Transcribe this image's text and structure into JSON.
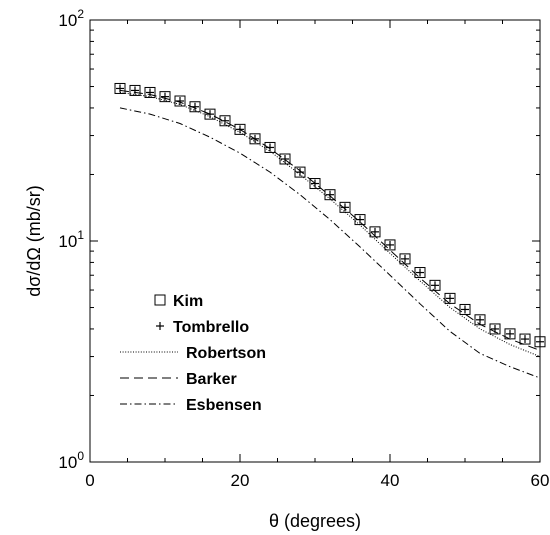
{
  "chart_data": {
    "type": "scatter",
    "xlabel": "θ   (degrees)",
    "ylabel": "dσ/dΩ  (mb/sr)",
    "xlim": [
      0,
      60
    ],
    "ylim": [
      1,
      100
    ],
    "yscale": "log",
    "x_ticks": [
      0,
      20,
      40,
      60
    ],
    "x_tick_labels": [
      "0",
      "20",
      "40",
      "60"
    ],
    "y_ticks": [
      1,
      10,
      100
    ],
    "y_tick_labels": [
      {
        "base": "10",
        "exp": "0"
      },
      {
        "base": "10",
        "exp": "1"
      },
      {
        "base": "10",
        "exp": "2"
      }
    ],
    "grid": false,
    "legend_position": "lower-left",
    "series": [
      {
        "name": "Kim",
        "kind": "markers",
        "marker": "square",
        "x": [
          4,
          6,
          8,
          10,
          12,
          14,
          16,
          18,
          20,
          22,
          24,
          26,
          28,
          30,
          32,
          34,
          36,
          38,
          40,
          42,
          44,
          46,
          48,
          50,
          52,
          54,
          56,
          58,
          60
        ],
        "y": [
          49.0,
          48.0,
          47.0,
          45.0,
          43.0,
          40.5,
          37.5,
          35.0,
          32.0,
          29.0,
          26.5,
          23.5,
          20.5,
          18.2,
          16.2,
          14.2,
          12.5,
          11.0,
          9.6,
          8.3,
          7.2,
          6.3,
          5.5,
          4.9,
          4.4,
          4.0,
          3.8,
          3.6,
          3.5
        ]
      },
      {
        "name": "Tombrello",
        "kind": "markers",
        "marker": "plus",
        "x": [
          4,
          6,
          8,
          10,
          12,
          14,
          16,
          18,
          20,
          22,
          24,
          26,
          28,
          30,
          32,
          34,
          36,
          38,
          40,
          42,
          44,
          46,
          48,
          50,
          52,
          54,
          56,
          58,
          60
        ],
        "y": [
          49.0,
          48.0,
          47.0,
          45.0,
          43.0,
          40.5,
          37.5,
          35.0,
          32.0,
          29.0,
          26.5,
          23.5,
          20.5,
          18.2,
          16.2,
          14.2,
          12.5,
          11.0,
          9.6,
          8.3,
          7.2,
          6.3,
          5.5,
          4.9,
          4.4,
          4.0,
          3.8,
          3.6,
          3.5
        ]
      },
      {
        "name": "Robertson",
        "kind": "line",
        "dash": "1,1.6",
        "x": [
          4,
          8,
          12,
          16,
          20,
          24,
          28,
          32,
          36,
          40,
          44,
          48,
          52,
          56,
          60
        ],
        "y": [
          47.0,
          45.0,
          41.5,
          36.5,
          31.0,
          25.5,
          20.0,
          15.5,
          11.8,
          8.8,
          6.6,
          5.0,
          4.0,
          3.4,
          3.0
        ]
      },
      {
        "name": "Barker",
        "kind": "line",
        "dash": "9,5",
        "x": [
          4,
          8,
          12,
          16,
          20,
          24,
          28,
          32,
          36,
          40,
          44,
          48,
          52,
          56,
          60
        ],
        "y": [
          48.0,
          46.0,
          42.5,
          37.5,
          32.0,
          26.2,
          20.8,
          16.0,
          12.2,
          9.1,
          6.8,
          5.2,
          4.2,
          3.6,
          3.2
        ]
      },
      {
        "name": "Esbensen",
        "kind": "line",
        "dash": "7,3,1.5,3",
        "x": [
          4,
          8,
          12,
          16,
          20,
          24,
          28,
          32,
          36,
          40,
          44,
          48,
          52,
          56,
          60
        ],
        "y": [
          40.0,
          37.5,
          34.0,
          29.5,
          25.0,
          20.5,
          16.2,
          12.5,
          9.4,
          7.0,
          5.2,
          3.9,
          3.1,
          2.7,
          2.4
        ]
      }
    ]
  }
}
